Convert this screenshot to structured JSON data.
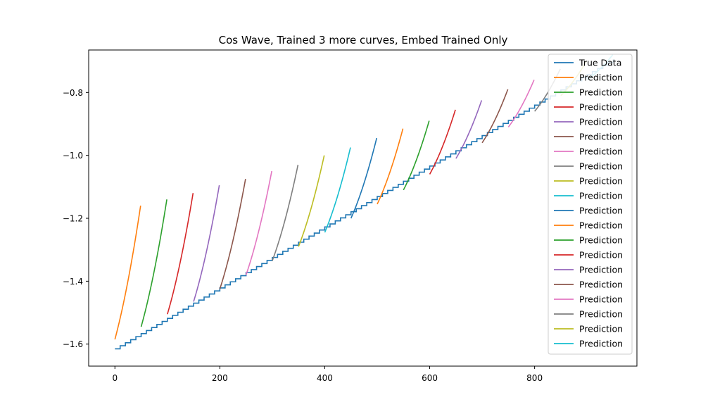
{
  "chart_data": {
    "type": "line",
    "title": "Cos Wave, Trained 3 more curves,  Embed Trained Only",
    "xlabel": "",
    "ylabel": "",
    "xlim": [
      -50,
      995
    ],
    "ylim": [
      -1.67,
      -0.665
    ],
    "xticks": [
      0,
      200,
      400,
      600,
      800
    ],
    "xtick_labels": [
      "0",
      "200",
      "400",
      "600",
      "800"
    ],
    "yticks": [
      -1.6,
      -1.4,
      -1.2,
      -1.0,
      -0.8
    ],
    "ytick_labels": [
      "−1.6",
      "−1.4",
      "−1.2",
      "−1.0",
      "−0.8"
    ],
    "grid": false,
    "legend_position": "top-right",
    "palette": [
      "#1f77b4",
      "#ff7f0e",
      "#2ca02c",
      "#d62728",
      "#9467bd",
      "#8c564b",
      "#e377c2",
      "#7f7f7f",
      "#bcbd22",
      "#17becf"
    ],
    "true_data": {
      "name": "True Data",
      "color": "#1f77b4",
      "style": "staircase",
      "x_start": 0,
      "x_end": 950,
      "step_x": 10,
      "y_start": -1.615,
      "y_end": -0.695
    },
    "series": [
      {
        "name": "Prediction",
        "color": "#ff7f0e",
        "x_start": 0,
        "x_end": 49,
        "y_start": -1.585,
        "y_end": -1.16
      },
      {
        "name": "Prediction",
        "color": "#2ca02c",
        "x_start": 50,
        "x_end": 99,
        "y_start": -1.545,
        "y_end": -1.14
      },
      {
        "name": "Prediction",
        "color": "#d62728",
        "x_start": 100,
        "x_end": 149,
        "y_start": -1.505,
        "y_end": -1.12
      },
      {
        "name": "Prediction",
        "color": "#9467bd",
        "x_start": 150,
        "x_end": 199,
        "y_start": -1.465,
        "y_end": -1.095
      },
      {
        "name": "Prediction",
        "color": "#8c564b",
        "x_start": 200,
        "x_end": 249,
        "y_start": -1.425,
        "y_end": -1.075
      },
      {
        "name": "Prediction",
        "color": "#e377c2",
        "x_start": 250,
        "x_end": 299,
        "y_start": -1.38,
        "y_end": -1.05
      },
      {
        "name": "Prediction",
        "color": "#7f7f7f",
        "x_start": 300,
        "x_end": 349,
        "y_start": -1.335,
        "y_end": -1.03
      },
      {
        "name": "Prediction",
        "color": "#bcbd22",
        "x_start": 350,
        "x_end": 399,
        "y_start": -1.29,
        "y_end": -1.0
      },
      {
        "name": "Prediction",
        "color": "#17becf",
        "x_start": 400,
        "x_end": 449,
        "y_start": -1.245,
        "y_end": -0.975
      },
      {
        "name": "Prediction",
        "color": "#1f77b4",
        "x_start": 450,
        "x_end": 499,
        "y_start": -1.2,
        "y_end": -0.945
      },
      {
        "name": "Prediction",
        "color": "#ff7f0e",
        "x_start": 500,
        "x_end": 549,
        "y_start": -1.155,
        "y_end": -0.915
      },
      {
        "name": "Prediction",
        "color": "#2ca02c",
        "x_start": 550,
        "x_end": 599,
        "y_start": -1.11,
        "y_end": -0.89
      },
      {
        "name": "Prediction",
        "color": "#d62728",
        "x_start": 600,
        "x_end": 649,
        "y_start": -1.06,
        "y_end": -0.855
      },
      {
        "name": "Prediction",
        "color": "#9467bd",
        "x_start": 650,
        "x_end": 699,
        "y_start": -1.01,
        "y_end": -0.825
      },
      {
        "name": "Prediction",
        "color": "#8c564b",
        "x_start": 700,
        "x_end": 749,
        "y_start": -0.96,
        "y_end": -0.79
      },
      {
        "name": "Prediction",
        "color": "#e377c2",
        "x_start": 750,
        "x_end": 799,
        "y_start": -0.91,
        "y_end": -0.76
      },
      {
        "name": "Prediction",
        "color": "#7f7f7f",
        "x_start": 800,
        "x_end": 849,
        "y_start": -0.86,
        "y_end": -0.725
      },
      {
        "name": "Prediction",
        "color": "#bcbd22",
        "x_start": 850,
        "x_end": 899,
        "y_start": -0.81,
        "y_end": -0.7
      },
      {
        "name": "Prediction",
        "color": "#17becf",
        "x_start": 900,
        "x_end": 949,
        "y_start": -0.76,
        "y_end": -0.68
      }
    ]
  }
}
